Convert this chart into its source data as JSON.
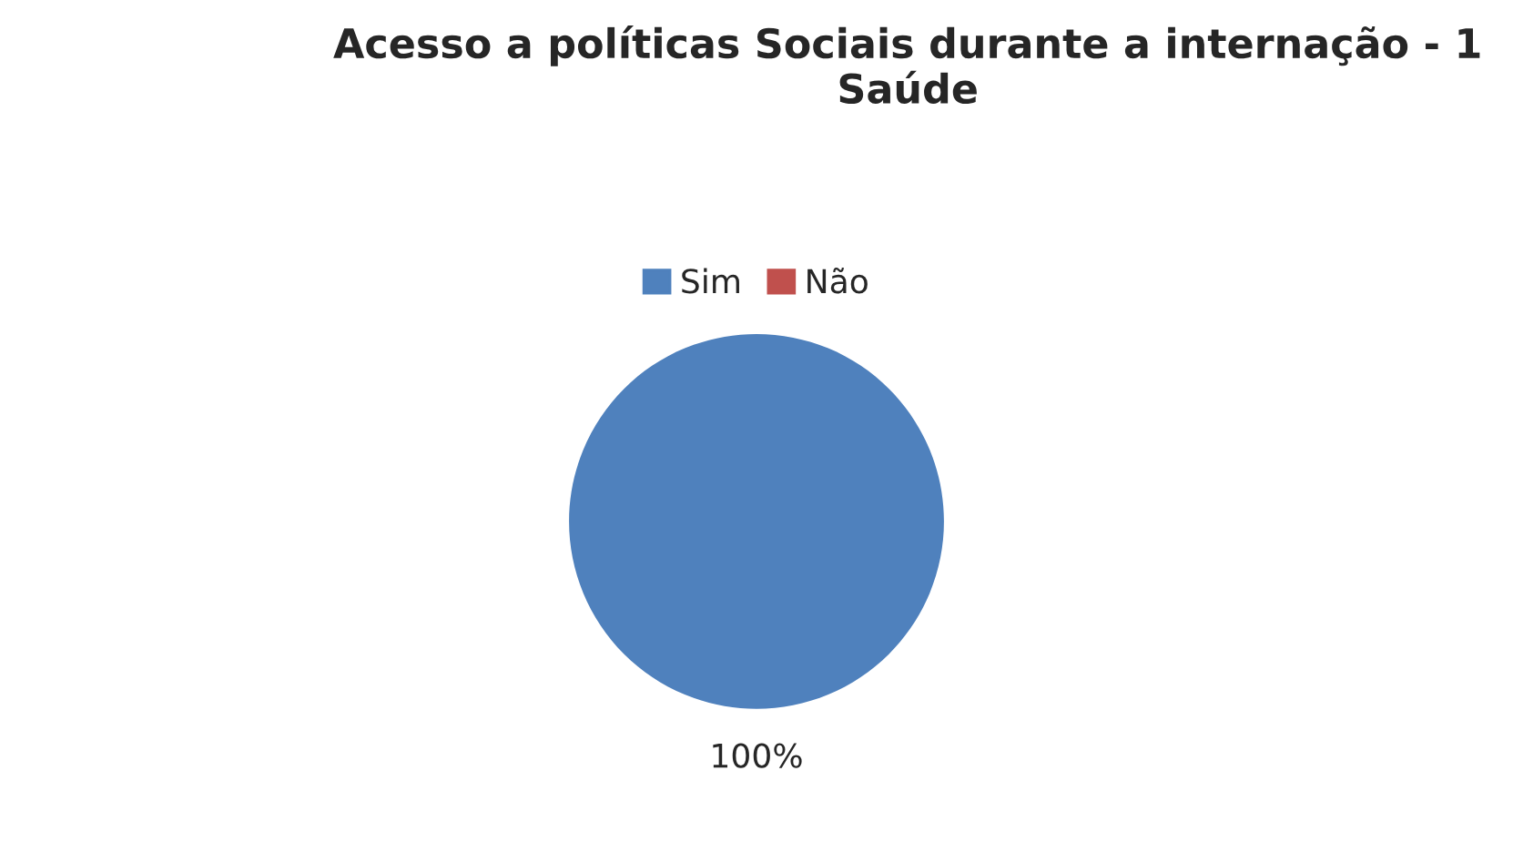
{
  "chart_data": {
    "type": "pie",
    "title": "Acesso a políticas Sociais durante a internação - 1 Saúde",
    "categories": [
      "Sim",
      "Não"
    ],
    "values": [
      100,
      0
    ],
    "colors": [
      "#4f81bd",
      "#c0504d"
    ],
    "value_labels": [
      "100%",
      null
    ],
    "legend": "top"
  }
}
